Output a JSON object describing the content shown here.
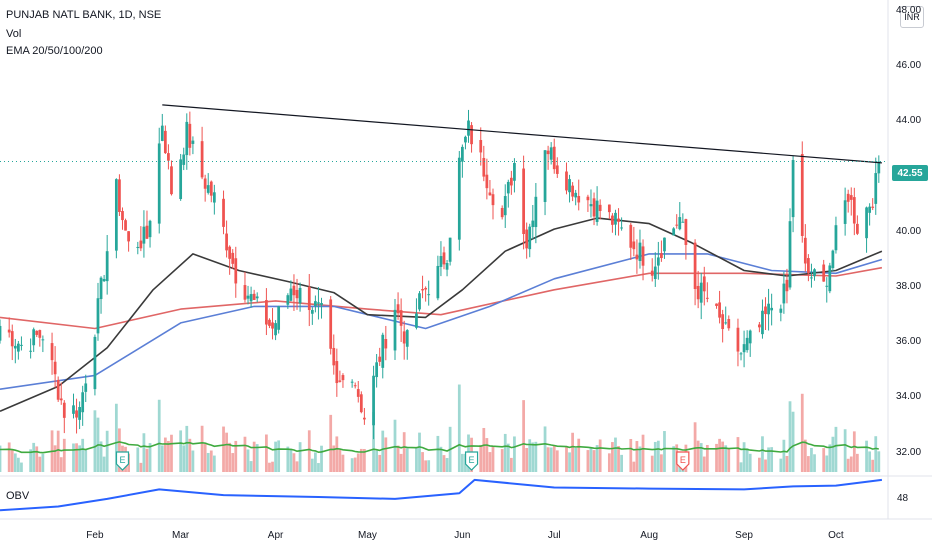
{
  "header": {
    "title": "PUNJAB NATL BANK, 1D, NSE",
    "volume_label": "Vol",
    "ema_label": "EMA 20/50/100/200",
    "currency_badge": "INR",
    "current_price": "42.55"
  },
  "obv_pane": {
    "label": "OBV",
    "tick": "48"
  },
  "chart_data": {
    "type": "candlestick",
    "symbol": "PUNJAB NATL BANK",
    "interval": "1D",
    "exchange": "NSE",
    "y_ticks": [
      "46.00",
      "44.00",
      "42.00",
      "40.00",
      "38.00",
      "36.00",
      "34.00",
      "32.00"
    ],
    "y_top_partial": "48.00",
    "ylim": [
      31.3,
      48.4
    ],
    "x_ticks": [
      "Feb",
      "Mar",
      "Apr",
      "May",
      "Jun",
      "Jul",
      "Aug",
      "Sep",
      "Oct"
    ],
    "last_price": 42.55,
    "price_anchors": [
      {
        "date": "2021-01-01",
        "close": 36.6
      },
      {
        "date": "2021-01-08",
        "close": 35.9
      },
      {
        "date": "2021-01-15",
        "close": 36.3
      },
      {
        "date": "2021-01-22",
        "close": 33.5
      },
      {
        "date": "2021-01-27",
        "close": 33.6
      },
      {
        "date": "2021-02-02",
        "close": 37.2
      },
      {
        "date": "2021-02-08",
        "close": 41.5
      },
      {
        "date": "2021-02-12",
        "close": 39.5
      },
      {
        "date": "2021-02-18",
        "close": 39.8
      },
      {
        "date": "2021-02-23",
        "close": 44.0
      },
      {
        "date": "2021-02-26",
        "close": 41.5
      },
      {
        "date": "2021-03-03",
        "close": 43.6
      },
      {
        "date": "2021-03-08",
        "close": 42.0
      },
      {
        "date": "2021-03-12",
        "close": 41.2
      },
      {
        "date": "2021-03-19",
        "close": 38.5
      },
      {
        "date": "2021-03-25",
        "close": 37.4
      },
      {
        "date": "2021-03-31",
        "close": 36.5
      },
      {
        "date": "2021-04-06",
        "close": 38.0
      },
      {
        "date": "2021-04-12",
        "close": 37.5
      },
      {
        "date": "2021-04-16",
        "close": 37.0
      },
      {
        "date": "2021-04-21",
        "close": 34.3
      },
      {
        "date": "2021-04-26",
        "close": 35.0
      },
      {
        "date": "2021-04-30",
        "close": 33.3
      },
      {
        "date": "2021-05-05",
        "close": 35.5
      },
      {
        "date": "2021-05-10",
        "close": 37.3
      },
      {
        "date": "2021-05-14",
        "close": 36.0
      },
      {
        "date": "2021-05-19",
        "close": 37.8
      },
      {
        "date": "2021-05-24",
        "close": 38.5
      },
      {
        "date": "2021-05-27",
        "close": 39.3
      },
      {
        "date": "2021-05-31",
        "close": 42.5
      },
      {
        "date": "2021-06-03",
        "close": 43.7
      },
      {
        "date": "2021-06-08",
        "close": 42.3
      },
      {
        "date": "2021-06-14",
        "close": 40.5
      },
      {
        "date": "2021-06-18",
        "close": 42.5
      },
      {
        "date": "2021-06-22",
        "close": 39.6
      },
      {
        "date": "2021-06-28",
        "close": 43.2
      },
      {
        "date": "2021-07-02",
        "close": 42.4
      },
      {
        "date": "2021-07-08",
        "close": 41.5
      },
      {
        "date": "2021-07-14",
        "close": 41.0
      },
      {
        "date": "2021-07-21",
        "close": 40.3
      },
      {
        "date": "2021-07-27",
        "close": 39.5
      },
      {
        "date": "2021-08-02",
        "close": 38.8
      },
      {
        "date": "2021-08-06",
        "close": 39.7
      },
      {
        "date": "2021-08-11",
        "close": 40.5
      },
      {
        "date": "2021-08-16",
        "close": 38.0
      },
      {
        "date": "2021-08-20",
        "close": 37.6
      },
      {
        "date": "2021-08-26",
        "close": 36.3
      },
      {
        "date": "2021-08-31",
        "close": 35.6
      },
      {
        "date": "2021-09-06",
        "close": 36.5
      },
      {
        "date": "2021-09-10",
        "close": 37.3
      },
      {
        "date": "2021-09-15",
        "close": 37.8
      },
      {
        "date": "2021-09-17",
        "close": 42.7
      },
      {
        "date": "2021-09-21",
        "close": 38.6
      },
      {
        "date": "2021-09-27",
        "close": 38.0
      },
      {
        "date": "2021-10-01",
        "close": 39.8
      },
      {
        "date": "2021-10-05",
        "close": 41.4
      },
      {
        "date": "2021-10-08",
        "close": 40.2
      },
      {
        "date": "2021-10-13",
        "close": 41.3
      },
      {
        "date": "2021-10-16",
        "close": 42.55
      }
    ],
    "ema_20": [
      {
        "date": "2021-01-01",
        "value": 33.5
      },
      {
        "date": "2021-01-20",
        "value": 34.4
      },
      {
        "date": "2021-02-05",
        "value": 35.8
      },
      {
        "date": "2021-02-20",
        "value": 37.9
      },
      {
        "date": "2021-03-05",
        "value": 39.2
      },
      {
        "date": "2021-03-20",
        "value": 38.6
      },
      {
        "date": "2021-04-05",
        "value": 38.2
      },
      {
        "date": "2021-04-20",
        "value": 37.8
      },
      {
        "date": "2021-05-01",
        "value": 37.0
      },
      {
        "date": "2021-05-20",
        "value": 36.9
      },
      {
        "date": "2021-06-01",
        "value": 37.9
      },
      {
        "date": "2021-06-15",
        "value": 39.3
      },
      {
        "date": "2021-07-01",
        "value": 40.1
      },
      {
        "date": "2021-07-15",
        "value": 40.5
      },
      {
        "date": "2021-08-01",
        "value": 40.3
      },
      {
        "date": "2021-08-15",
        "value": 39.6
      },
      {
        "date": "2021-09-01",
        "value": 38.6
      },
      {
        "date": "2021-09-15",
        "value": 38.4
      },
      {
        "date": "2021-10-01",
        "value": 38.6
      },
      {
        "date": "2021-10-16",
        "value": 39.3
      }
    ],
    "ema_50": [
      {
        "date": "2021-01-01",
        "value": 34.3
      },
      {
        "date": "2021-02-01",
        "value": 34.8
      },
      {
        "date": "2021-03-01",
        "value": 36.7
      },
      {
        "date": "2021-03-25",
        "value": 37.3
      },
      {
        "date": "2021-04-20",
        "value": 37.3
      },
      {
        "date": "2021-05-20",
        "value": 36.5
      },
      {
        "date": "2021-06-10",
        "value": 37.3
      },
      {
        "date": "2021-07-01",
        "value": 38.3
      },
      {
        "date": "2021-08-01",
        "value": 39.2
      },
      {
        "date": "2021-08-20",
        "value": 39.2
      },
      {
        "date": "2021-09-10",
        "value": 38.6
      },
      {
        "date": "2021-10-01",
        "value": 38.5
      },
      {
        "date": "2021-10-16",
        "value": 39.0
      }
    ],
    "ema_100": [
      {
        "date": "2021-01-01",
        "value": 36.9
      },
      {
        "date": "2021-02-01",
        "value": 36.5
      },
      {
        "date": "2021-03-01",
        "value": 37.2
      },
      {
        "date": "2021-04-01",
        "value": 37.5
      },
      {
        "date": "2021-05-01",
        "value": 37.2
      },
      {
        "date": "2021-05-25",
        "value": 37.0
      },
      {
        "date": "2021-07-01",
        "value": 37.9
      },
      {
        "date": "2021-08-01",
        "value": 38.5
      },
      {
        "date": "2021-09-01",
        "value": 38.5
      },
      {
        "date": "2021-10-01",
        "value": 38.4
      },
      {
        "date": "2021-10-16",
        "value": 38.7
      }
    ],
    "trendline": {
      "from": {
        "date": "2021-02-23",
        "value": 44.6
      },
      "to": {
        "date": "2021-10-16",
        "value": 42.5
      }
    },
    "earnings_markers": [
      {
        "date": "2021-02-10",
        "label": "E",
        "color": "#26a69a"
      },
      {
        "date": "2021-06-04",
        "label": "E",
        "color": "#26a69a"
      },
      {
        "date": "2021-08-12",
        "label": "E",
        "color": "#ef5350"
      }
    ],
    "obv": [
      {
        "date": "2021-01-01",
        "value": 0.15
      },
      {
        "date": "2021-01-20",
        "value": 0.25
      },
      {
        "date": "2021-02-05",
        "value": 0.45
      },
      {
        "date": "2021-02-22",
        "value": 0.7
      },
      {
        "date": "2021-03-15",
        "value": 0.55
      },
      {
        "date": "2021-04-15",
        "value": 0.5
      },
      {
        "date": "2021-05-10",
        "value": 0.45
      },
      {
        "date": "2021-05-31",
        "value": 0.6
      },
      {
        "date": "2021-06-05",
        "value": 0.95
      },
      {
        "date": "2021-07-01",
        "value": 0.75
      },
      {
        "date": "2021-08-01",
        "value": 0.72
      },
      {
        "date": "2021-09-01",
        "value": 0.7
      },
      {
        "date": "2021-09-17",
        "value": 0.78
      },
      {
        "date": "2021-10-01",
        "value": 0.8
      },
      {
        "date": "2021-10-16",
        "value": 0.95
      }
    ],
    "colors": {
      "up": "#26a69a",
      "down": "#ef5350",
      "ema_20": "#3a3a3a",
      "ema_50": "#5b7fd6",
      "ema_100": "#e06666",
      "volume_ema": "#3faa3f",
      "obv": "#2962ff",
      "trendline": "#131722"
    }
  }
}
